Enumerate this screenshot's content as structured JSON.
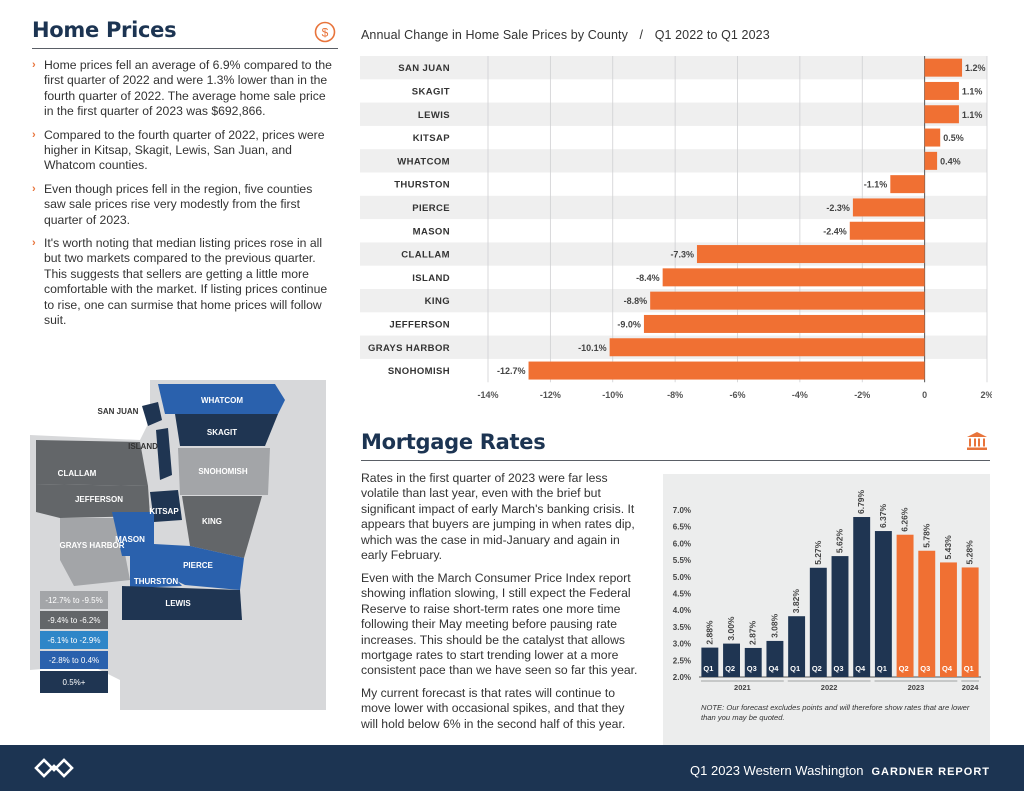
{
  "home_prices": {
    "title": "Home Prices",
    "icon": "dollar-circle-icon",
    "bullets": [
      "Home prices fell an average of 6.9% compared to the first quarter of 2022 and were 1.3% lower than in the fourth quarter of 2022. The average home sale price in the first quarter of 2023 was $692,866.",
      "Compared to the fourth quarter of 2022, prices were higher in Kitsap, Skagit, Lewis, San Juan, and Whatcom counties.",
      "Even though prices fell in the region, five counties saw sale prices rise very modestly from the first quarter of 2023.",
      "It's worth noting that median listing prices rose in all but two markets compared to the previous quarter. This suggests that sellers are getting a little more comfortable with the market. If listing prices continue to rise, one can surmise that home prices will follow suit."
    ]
  },
  "map": {
    "counties": [
      "WHATCOM",
      "SAN JUAN",
      "SKAGIT",
      "ISLAND",
      "SNOHOMISH",
      "CLALLAM",
      "JEFFERSON",
      "KITSAP",
      "KING",
      "GRAYS HARBOR",
      "MASON",
      "PIERCE",
      "THURSTON",
      "LEWIS"
    ],
    "legend": [
      "-12.7% to -9.5%",
      "-9.4% to -6.2%",
      "-6.1% to -2.9%",
      "-2.8% to 0.4%",
      "0.5%+"
    ],
    "legend_colors": [
      "#a3a5a8",
      "#636669",
      "#2e86c8",
      "#2a61ad",
      "#1f3552"
    ]
  },
  "chart_data": [
    {
      "type": "bar",
      "orientation": "horizontal",
      "title": "Annual Change in Home Sale Prices by County",
      "subtitle": "Q1 2022 to Q1 2023",
      "categories": [
        "SAN JUAN",
        "SKAGIT",
        "LEWIS",
        "KITSAP",
        "WHATCOM",
        "THURSTON",
        "PIERCE",
        "MASON",
        "CLALLAM",
        "ISLAND",
        "KING",
        "JEFFERSON",
        "GRAYS HARBOR",
        "SNOHOMISH"
      ],
      "values": [
        1.2,
        1.1,
        1.1,
        0.5,
        0.4,
        -1.1,
        -2.3,
        -2.4,
        -7.3,
        -8.4,
        -8.8,
        -9.0,
        -10.1,
        -12.7
      ],
      "value_labels": [
        "1.2%",
        "1.1%",
        "1.1%",
        "0.5%",
        "0.4%",
        "-1.1%",
        "-2.3%",
        "-2.4%",
        "-7.3%",
        "-8.4%",
        "-8.8%",
        "-9.0%",
        "-10.1%",
        "-12.7%"
      ],
      "xticks": [
        "-14%",
        "-12%",
        "-10%",
        "-8%",
        "-6%",
        "-4%",
        "-2%",
        "0",
        "2%"
      ],
      "xlim": [
        -14,
        2
      ],
      "bar_color": "#f07033",
      "grid": true
    },
    {
      "type": "bar",
      "title": "",
      "categories": [
        "Q1",
        "Q2",
        "Q3",
        "Q4",
        "Q1",
        "Q2",
        "Q3",
        "Q4",
        "Q1",
        "Q2",
        "Q3",
        "Q4",
        "Q1"
      ],
      "years": [
        {
          "label": "2021",
          "span": [
            0,
            3
          ]
        },
        {
          "label": "2022",
          "span": [
            4,
            7
          ]
        },
        {
          "label": "2023",
          "span": [
            8,
            11
          ]
        },
        {
          "label": "2024",
          "span": [
            12,
            12
          ]
        }
      ],
      "values": [
        2.88,
        3.0,
        2.87,
        3.08,
        3.82,
        5.27,
        5.62,
        6.79,
        6.37,
        6.26,
        5.78,
        5.43,
        5.28
      ],
      "value_labels": [
        "2.88%",
        "3.00%",
        "2.87%",
        "3.08%",
        "3.82%",
        "5.27%",
        "5.62%",
        "6.79%",
        "6.37%",
        "6.26%",
        "5.78%",
        "5.43%",
        "5.28%"
      ],
      "forecast": [
        false,
        false,
        false,
        false,
        false,
        false,
        false,
        false,
        false,
        true,
        true,
        true,
        true
      ],
      "yticks": [
        "2.0%",
        "2.5%",
        "3.0%",
        "3.5%",
        "4.0%",
        "4.5%",
        "5.0%",
        "5.5%",
        "6.0%",
        "6.5%",
        "7.0%"
      ],
      "ylim": [
        2.0,
        7.0
      ],
      "actual_color": "#1f3552",
      "forecast_color": "#f07033",
      "note": "NOTE: Our forecast excludes points and will therefore show rates that are lower than you may be quoted."
    }
  ],
  "mortgage": {
    "title": "Mortgage Rates",
    "icon": "bank-building-icon",
    "paragraphs": [
      "Rates in the first quarter of 2023 were far less volatile than last year, even with the brief but significant impact of early March's banking crisis. It appears that buyers are jumping in when rates dip, which was the case in mid-January and again in early February.",
      "Even with the March Consumer Price Index report showing inflation slowing, I still expect the Federal Reserve to raise short-term rates one more time following their May meeting before pausing rate increases. This should be the catalyst that allows mortgage rates to start trending lower at a more consistent pace than we have seen so far this year.",
      "My current forecast is that rates will continue to move lower with occasional spikes, and that they will hold below 6% in the second half of this year."
    ]
  },
  "footer": {
    "logo": "windermere-logo-icon",
    "edition": "Q1 2023  Western Washington",
    "report": "GARDNER REPORT"
  }
}
